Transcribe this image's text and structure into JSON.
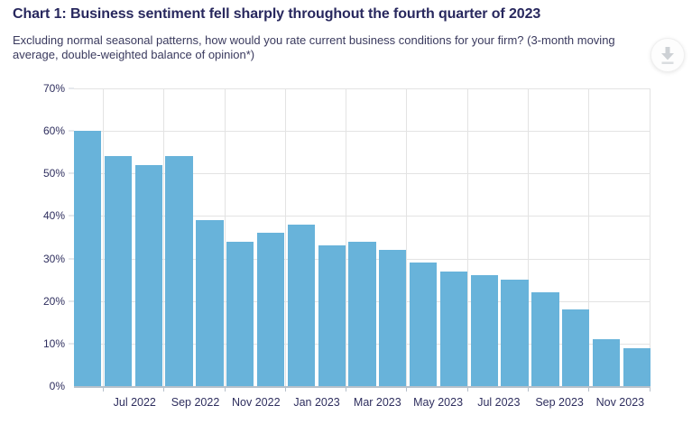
{
  "toolbar": {
    "download_label": "Download chart"
  },
  "chart_data": {
    "type": "bar",
    "title": "Chart 1: Business sentiment fell sharply throughout the fourth quarter of 2023",
    "subtitle": "Excluding normal seasonal patterns, how would you rate current business conditions for your firm? (3-month moving average, double-weighted balance of opinion*)",
    "categories": [
      "May 2022",
      "Jun 2022",
      "Jul 2022",
      "Aug 2022",
      "Sep 2022",
      "Oct 2022",
      "Nov 2022",
      "Dec 2022",
      "Jan 2023",
      "Feb 2023",
      "Mar 2023",
      "Apr 2023",
      "May 2023",
      "Jun 2023",
      "Jul 2023",
      "Aug 2023",
      "Sep 2023",
      "Oct 2023",
      "Nov 2023"
    ],
    "values": [
      60,
      54,
      52,
      54,
      39,
      34,
      36,
      38,
      33,
      34,
      32,
      29,
      27,
      26,
      25,
      22,
      18,
      11,
      9
    ],
    "unit": "%",
    "xlabel": "",
    "ylabel": "",
    "ylim": [
      0,
      70
    ],
    "y_ticks": [
      0,
      10,
      20,
      30,
      40,
      50,
      60,
      70
    ],
    "y_tick_labels": [
      "0%",
      "10%",
      "20%",
      "30%",
      "40%",
      "50%",
      "60%",
      "70%"
    ],
    "x_tick_labels": [
      "Jul 2022",
      "Sep 2022",
      "Nov 2022",
      "Jan 2023",
      "Mar 2023",
      "May 2023",
      "Jul 2023",
      "Sep 2023",
      "Nov 2023"
    ],
    "grid": true,
    "legend": false,
    "bar_color": "#68B3DA",
    "title_color": "#28285E",
    "axis_label_color": "#2E2E5E"
  }
}
